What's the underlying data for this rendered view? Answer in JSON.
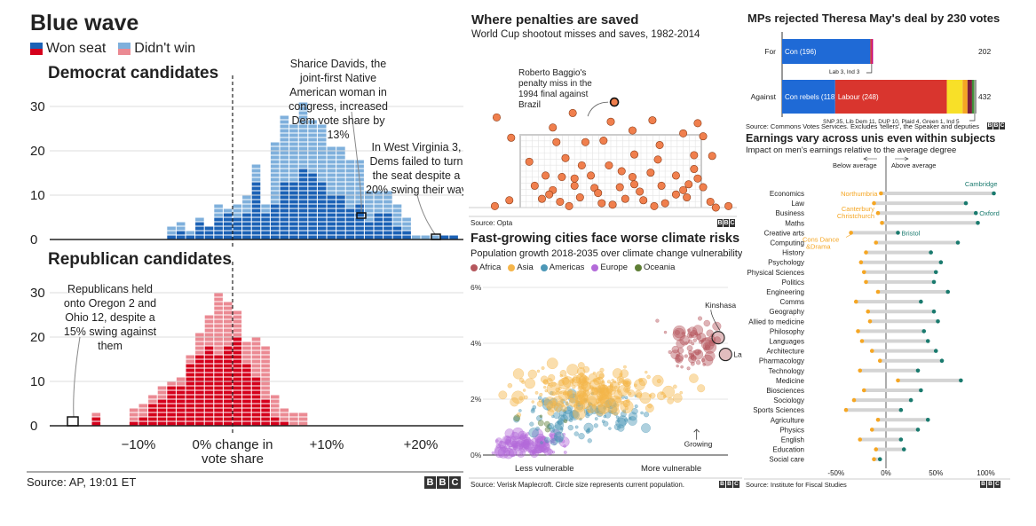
{
  "footers": {
    "blue_wave": "Source: AP, 19:01 ET",
    "penalties": "Source: Opta",
    "climate": "Source: Verisk Maplecroft. Circle size represents current population.",
    "brexit": "Source: Commons Votes Services. Excludes 'tellers', the Speaker and deputies",
    "earnings": "Source: Institute for Fiscal Studies"
  },
  "bbc_letters": [
    "B",
    "B",
    "C"
  ],
  "chart_data": [
    {
      "id": "blue-wave",
      "type": "bar",
      "title": "Blue wave",
      "legend": [
        {
          "label": "Won seat",
          "colors": [
            "#1b62b6",
            "#d5001c"
          ]
        },
        {
          "label": "Didn't win",
          "colors": [
            "#7fb0dc",
            "#eb8a93"
          ]
        }
      ],
      "x_tick_labels": [
        "−10%",
        "0% change in",
        "vote share",
        "+10%",
        "+20%"
      ],
      "y_ticks": [
        0,
        10,
        20,
        30
      ],
      "panels": [
        {
          "name": "Democrat candidates",
          "bin_start": -7,
          "won": [
            1,
            2,
            1,
            4,
            3,
            5,
            6,
            5,
            6,
            13,
            6,
            8,
            13,
            13,
            16,
            15,
            13,
            10,
            10,
            7,
            8,
            4,
            6,
            6,
            3,
            2,
            0,
            0,
            0,
            1,
            1,
            0,
            0
          ],
          "total": [
            3,
            4,
            2,
            5,
            3,
            8,
            7,
            8,
            10,
            17,
            8,
            22,
            28,
            26,
            31,
            27,
            26,
            21,
            21,
            18,
            18,
            11,
            11,
            11,
            8,
            5,
            1,
            1,
            1,
            1,
            1,
            0,
            1
          ],
          "annotations": [
            "Sharice Davids, the joint-first Native American woman in congress, increased Dem vote share by 13%",
            "In West Virginia 3, Dems failed to turn the seat despite a 20% swing their way"
          ]
        },
        {
          "name": "Republican candidates",
          "bin_start": -15,
          "won": [
            2,
            0,
            0,
            0,
            1,
            2,
            5,
            6,
            9,
            9,
            14,
            16,
            18,
            16,
            18,
            20,
            14,
            11,
            6,
            2,
            1,
            0,
            0,
            0
          ],
          "total": [
            3,
            0,
            0,
            0,
            4,
            5,
            7,
            9,
            10,
            11,
            16,
            21,
            25,
            30,
            28,
            26,
            19,
            20,
            18,
            7,
            4,
            3,
            3,
            0
          ],
          "annotations": [
            "Republicans held onto Oregon 2 and Ohio 12, despite a 15% swing against them"
          ]
        }
      ]
    },
    {
      "id": "penalties",
      "type": "scatter",
      "title": "Where penalties are saved",
      "subtitle": "World Cup shootout misses and saves, 1982-2014",
      "annotation": "Roberto Baggio's penalty miss in the 1994 final against Brazil",
      "points": [
        [
          -0.05,
          0.96
        ],
        [
          0.2,
          0.9
        ],
        [
          0.36,
          0.9
        ],
        [
          0.63,
          0.73
        ],
        [
          0.77,
          0.86
        ],
        [
          0.96,
          0.72
        ],
        [
          1.06,
          0.71
        ],
        [
          0.05,
          0.63
        ],
        [
          0.25,
          0.68
        ],
        [
          0.34,
          0.58
        ],
        [
          0.49,
          0.58
        ],
        [
          0.76,
          0.66
        ],
        [
          0.96,
          0.53
        ],
        [
          0.14,
          0.44
        ],
        [
          0.23,
          0.42
        ],
        [
          0.39,
          0.44
        ],
        [
          0.56,
          0.5
        ],
        [
          0.62,
          0.42
        ],
        [
          0.72,
          0.48
        ],
        [
          0.86,
          0.44
        ],
        [
          0.98,
          0.4
        ],
        [
          0.08,
          0.3
        ],
        [
          0.18,
          0.24
        ],
        [
          0.3,
          0.3
        ],
        [
          0.41,
          0.27
        ],
        [
          0.55,
          0.28
        ],
        [
          0.66,
          0.22
        ],
        [
          0.78,
          0.3
        ],
        [
          0.9,
          0.24
        ],
        [
          1.01,
          0.28
        ],
        [
          0.12,
          0.12
        ],
        [
          0.22,
          0.08
        ],
        [
          0.33,
          0.14
        ],
        [
          0.45,
          0.06
        ],
        [
          0.58,
          0.12
        ],
        [
          0.68,
          0.1
        ],
        [
          0.8,
          0.06
        ],
        [
          0.92,
          0.14
        ],
        [
          1.05,
          0.08
        ],
        [
          -0.06,
          0.1
        ],
        [
          0.27,
          0.02
        ],
        [
          0.51,
          0.04
        ],
        [
          0.74,
          0.02
        ],
        [
          1.08,
          0.0
        ],
        [
          0.16,
          0.18
        ],
        [
          0.86,
          0.18
        ],
        [
          0.43,
          0.2
        ],
        [
          0.63,
          0.32
        ],
        [
          0.3,
          0.4
        ],
        [
          0.93,
          0.32
        ],
        [
          -0.14,
          0.02
        ],
        [
          1.15,
          0.02
        ]
      ],
      "highlight": [
        0.52,
        1.45
      ],
      "extra_points": [
        [
          0.29,
          1.3
        ],
        [
          -0.13,
          1.24
        ],
        [
          0.5,
          1.18
        ],
        [
          0.73,
          1.2
        ],
        [
          0.98,
          1.16
        ],
        [
          0.18,
          1.1
        ],
        [
          0.62,
          1.06
        ],
        [
          0.9,
          1.02
        ],
        [
          1.01,
          0.98
        ],
        [
          0.46,
          0.92
        ]
      ]
    },
    {
      "id": "climate",
      "type": "scatter",
      "title": "Fast-growing cities face worse climate risks",
      "subtitle": "Population growth 2018-2035 over climate change vulnerability",
      "xlabel_left": "Less vulnerable",
      "xlabel_right": "More vulnerable",
      "y_ticks": [
        "0%",
        "2%",
        "4%",
        "6%"
      ],
      "ylim": [
        0,
        6
      ],
      "legend": [
        {
          "label": "Africa",
          "color": "#b5575d"
        },
        {
          "label": "Asia",
          "color": "#f5b54a"
        },
        {
          "label": "Americas",
          "color": "#4c97b6"
        },
        {
          "label": "Europe",
          "color": "#b36ad9"
        },
        {
          "label": "Oceania",
          "color": "#5e7e35"
        }
      ],
      "labels": [
        {
          "text": "Kinshasa",
          "x": 0.96,
          "y": 4.2
        },
        {
          "text": "Lagos",
          "x": 0.97,
          "y": 3.6
        },
        {
          "text": "Growing",
          "x": 0.82,
          "y": 0.3
        }
      ]
    },
    {
      "id": "brexit",
      "type": "bar",
      "title": "MPs rejected Theresa May's deal by 230 votes",
      "rows": [
        {
          "label": "For",
          "total": "202",
          "note": "Lab 3, Ind 3",
          "segments": [
            {
              "label": "Con (196)",
              "value": 196,
              "color": "#1f6ad6"
            },
            {
              "label": "",
              "value": 3,
              "color": "#d9352e"
            },
            {
              "label": "",
              "value": 3,
              "color": "#c2007b"
            }
          ]
        },
        {
          "label": "Against",
          "total": "432",
          "note": "SNP 35, Lib Dem 11, DUP 10, Plaid 4, Green 1, Ind 5",
          "segments": [
            {
              "label": "Con rebels (118)",
              "value": 118,
              "color": "#1f6ad6"
            },
            {
              "label": "Labour (248)",
              "value": 248,
              "color": "#d9352e"
            },
            {
              "label": "",
              "value": 35,
              "color": "#f8e028"
            },
            {
              "label": "",
              "value": 11,
              "color": "#f5a623"
            },
            {
              "label": "",
              "value": 10,
              "color": "#7c1f3b"
            },
            {
              "label": "",
              "value": 4,
              "color": "#3d8c38"
            },
            {
              "label": "",
              "value": 1,
              "color": "#6cbf45"
            },
            {
              "label": "",
              "value": 5,
              "color": "#999999"
            }
          ]
        }
      ],
      "xlim": [
        0,
        432
      ]
    },
    {
      "id": "earnings",
      "type": "scatter",
      "title": "Earnings vary across unis even within subjects",
      "subtitle": "Impact on men's earnings relative to the average degree",
      "below_label": "Below average",
      "above_label": "Above average",
      "x_ticks": [
        -50,
        0,
        50,
        100
      ],
      "x_tick_labels": [
        "-50%",
        "0%",
        "50%",
        "100%"
      ],
      "xlim": [
        -80,
        120
      ],
      "series_colors": {
        "low": "#f5a623",
        "high": "#1a7a6e"
      },
      "rows": [
        {
          "subject": "Economics",
          "low": -5,
          "high": 108,
          "low_label": "Northumbria",
          "high_label": "Cambridge"
        },
        {
          "subject": "Law",
          "low": -12,
          "high": 80
        },
        {
          "subject": "Business",
          "low": -8,
          "high": 90,
          "low_label": "Canterbury Christchurch",
          "high_label": "Oxford"
        },
        {
          "subject": "Maths",
          "low": -4,
          "high": 92
        },
        {
          "subject": "Creative arts",
          "low": -35,
          "high": 12,
          "high_label": "Bristol"
        },
        {
          "subject": "Computing",
          "low": -10,
          "high": 72,
          "low_label": "Cons Dance &Drama"
        },
        {
          "subject": "History",
          "low": -20,
          "high": 45
        },
        {
          "subject": "Psychology",
          "low": -25,
          "high": 55
        },
        {
          "subject": "Physical Sciences",
          "low": -22,
          "high": 50
        },
        {
          "subject": "Politics",
          "low": -20,
          "high": 48
        },
        {
          "subject": "Engineering",
          "low": -8,
          "high": 62
        },
        {
          "subject": "Comms",
          "low": -30,
          "high": 35
        },
        {
          "subject": "Geography",
          "low": -18,
          "high": 48
        },
        {
          "subject": "Allied to medicine",
          "low": -16,
          "high": 52
        },
        {
          "subject": "Philosophy",
          "low": -28,
          "high": 38
        },
        {
          "subject": "Languages",
          "low": -24,
          "high": 42
        },
        {
          "subject": "Architecture",
          "low": -14,
          "high": 50
        },
        {
          "subject": "Pharmacology",
          "low": -6,
          "high": 56
        },
        {
          "subject": "Technology",
          "low": -26,
          "high": 32
        },
        {
          "subject": "Medicine",
          "low": 12,
          "high": 75
        },
        {
          "subject": "Biosciences",
          "low": -22,
          "high": 35
        },
        {
          "subject": "Sociology",
          "low": -32,
          "high": 25
        },
        {
          "subject": "Sports Sciences",
          "low": -40,
          "high": 15
        },
        {
          "subject": "Agriculture",
          "low": -8,
          "high": 42
        },
        {
          "subject": "Physics",
          "low": -14,
          "high": 32
        },
        {
          "subject": "English",
          "low": -26,
          "high": 15
        },
        {
          "subject": "Education",
          "low": -10,
          "high": 18
        },
        {
          "subject": "Social care",
          "low": -12,
          "high": -6
        }
      ]
    }
  ]
}
